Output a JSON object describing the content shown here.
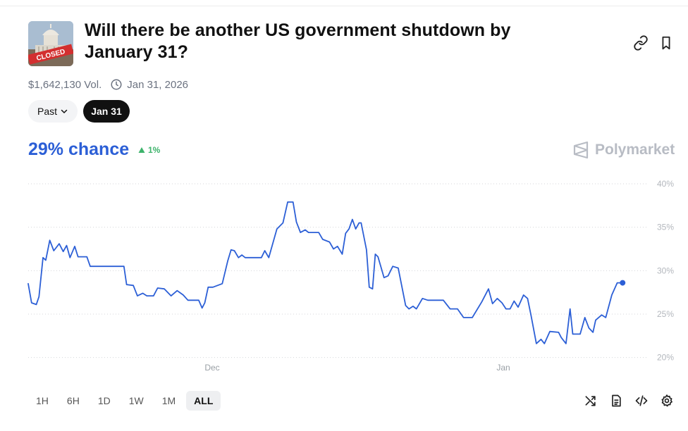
{
  "header": {
    "thumbnail_text": "CLOSED",
    "title": "Will there be another US government shutdown by January 31?",
    "volume": "$1,642,130 Vol.",
    "end_date": "Jan 31, 2026",
    "icons": [
      "link-icon",
      "bookmark-icon"
    ]
  },
  "chips": {
    "past_label": "Past",
    "date_label": "Jan 31"
  },
  "summary": {
    "chance": "29% chance",
    "change": "1%",
    "change_color": "#3db36b",
    "brand": "Polymarket"
  },
  "chart_data": {
    "type": "line",
    "color": "#2c5fd6",
    "grid": true,
    "ylim": [
      19,
      40
    ],
    "xlim": [
      0,
      91
    ],
    "y_ticks": [
      20,
      25,
      30,
      35,
      40
    ],
    "y_tick_labels": [
      "20%",
      "25%",
      "30%",
      "35%",
      "40%"
    ],
    "x_tick_labels": [
      {
        "label": "Dec",
        "x": 27.3
      },
      {
        "label": "Jan",
        "x": 70.5
      }
    ],
    "series": [
      {
        "values": [
          [
            0,
            28.5
          ],
          [
            0.5,
            26.3
          ],
          [
            1.2,
            26.1
          ],
          [
            1.6,
            27
          ],
          [
            2.2,
            31.5
          ],
          [
            2.6,
            31.2
          ],
          [
            3.2,
            33.5
          ],
          [
            3.8,
            32.3
          ],
          [
            4.6,
            33.1
          ],
          [
            5.2,
            32.2
          ],
          [
            5.7,
            32.9
          ],
          [
            6.2,
            31.5
          ],
          [
            6.9,
            32.8
          ],
          [
            7.4,
            31.6
          ],
          [
            8.7,
            31.6
          ],
          [
            9.2,
            30.5
          ],
          [
            13,
            30.5
          ],
          [
            14.2,
            30.5
          ],
          [
            14.6,
            28.4
          ],
          [
            15.6,
            28.3
          ],
          [
            16.2,
            27.1
          ],
          [
            17,
            27.4
          ],
          [
            17.6,
            27.1
          ],
          [
            18.6,
            27.1
          ],
          [
            19.2,
            28
          ],
          [
            20.2,
            27.9
          ],
          [
            21.2,
            27.1
          ],
          [
            22.1,
            27.7
          ],
          [
            23,
            27.2
          ],
          [
            23.7,
            26.6
          ],
          [
            25.3,
            26.6
          ],
          [
            25.8,
            25.7
          ],
          [
            26.2,
            26.3
          ],
          [
            26.7,
            28.1
          ],
          [
            27.4,
            28.1
          ],
          [
            28.8,
            28.5
          ],
          [
            29.6,
            31.1
          ],
          [
            30.1,
            32.4
          ],
          [
            30.6,
            32.3
          ],
          [
            31.2,
            31.5
          ],
          [
            31.7,
            31.8
          ],
          [
            32.2,
            31.5
          ],
          [
            34.6,
            31.5
          ],
          [
            35.1,
            32.3
          ],
          [
            35.7,
            31.5
          ],
          [
            36.9,
            34.8
          ],
          [
            37.8,
            35.5
          ],
          [
            38.5,
            37.9
          ],
          [
            39.3,
            37.9
          ],
          [
            39.8,
            35.6
          ],
          [
            40.4,
            34.4
          ],
          [
            41.1,
            34.7
          ],
          [
            41.6,
            34.4
          ],
          [
            43.1,
            34.4
          ],
          [
            43.7,
            33.6
          ],
          [
            44.7,
            33.3
          ],
          [
            45.3,
            32.5
          ],
          [
            45.9,
            32.8
          ],
          [
            46.6,
            31.9
          ],
          [
            47.1,
            34.3
          ],
          [
            47.6,
            34.8
          ],
          [
            48.1,
            35.9
          ],
          [
            48.6,
            34.8
          ],
          [
            49.1,
            35.5
          ],
          [
            49.4,
            35.5
          ],
          [
            50.2,
            32.4
          ],
          [
            50.6,
            28.1
          ],
          [
            51.1,
            27.9
          ],
          [
            51.5,
            31.9
          ],
          [
            51.9,
            31.6
          ],
          [
            52.8,
            29.2
          ],
          [
            53.4,
            29.4
          ],
          [
            54.1,
            30.5
          ],
          [
            54.9,
            30.3
          ],
          [
            56,
            26
          ],
          [
            56.5,
            25.6
          ],
          [
            57.1,
            25.9
          ],
          [
            57.6,
            25.6
          ],
          [
            58.5,
            26.8
          ],
          [
            59.3,
            26.6
          ],
          [
            61.6,
            26.6
          ],
          [
            62.6,
            25.6
          ],
          [
            63.7,
            25.6
          ],
          [
            64.6,
            24.6
          ],
          [
            65.9,
            24.6
          ],
          [
            67.3,
            26.4
          ],
          [
            68.3,
            27.9
          ],
          [
            68.9,
            26.2
          ],
          [
            69.6,
            26.8
          ],
          [
            70.3,
            26.3
          ],
          [
            70.9,
            25.6
          ],
          [
            71.5,
            25.6
          ],
          [
            72.1,
            26.5
          ],
          [
            72.7,
            25.8
          ],
          [
            73.5,
            27.2
          ],
          [
            74.1,
            26.8
          ],
          [
            74.6,
            24.9
          ],
          [
            75.4,
            21.6
          ],
          [
            76.1,
            22.1
          ],
          [
            76.6,
            21.6
          ],
          [
            77.4,
            23
          ],
          [
            78.7,
            22.9
          ],
          [
            79.1,
            22.3
          ],
          [
            79.8,
            21.6
          ],
          [
            80.4,
            25.6
          ],
          [
            80.8,
            22.7
          ],
          [
            81.9,
            22.7
          ],
          [
            82.6,
            24.6
          ],
          [
            83.2,
            23.4
          ],
          [
            83.8,
            22.9
          ],
          [
            84.2,
            24.3
          ],
          [
            85.1,
            24.9
          ],
          [
            85.7,
            24.6
          ],
          [
            86.6,
            27.2
          ],
          [
            87.4,
            28.6
          ],
          [
            88.2,
            28.6
          ]
        ]
      }
    ],
    "end_marker": [
      88.2,
      28.6
    ]
  },
  "timeframes": {
    "items": [
      "1H",
      "6H",
      "1D",
      "1W",
      "1M",
      "ALL"
    ],
    "active": "ALL"
  },
  "tools": [
    "shuffle-icon",
    "document-icon",
    "embed-code-icon",
    "settings-gear-icon"
  ]
}
